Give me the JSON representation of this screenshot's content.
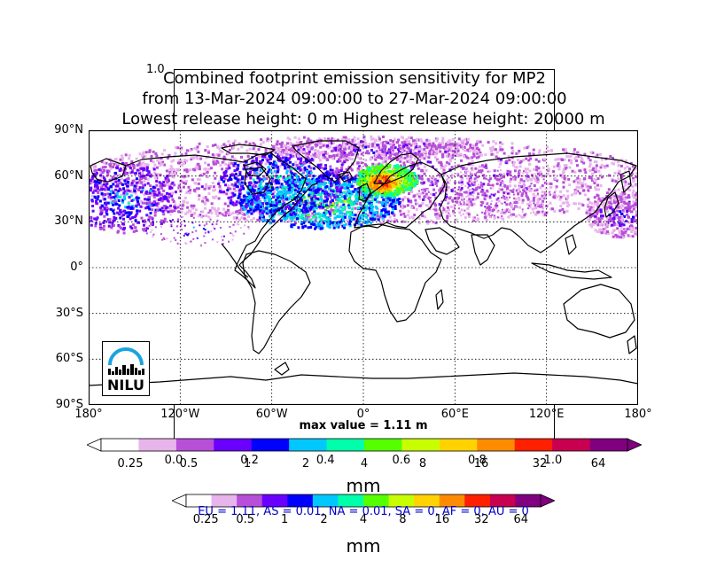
{
  "title": {
    "line1": "Combined footprint emission sensitivity for MP2",
    "line2": "from 13-Mar-2024 09:00:00 to 27-Mar-2024 09:00:00",
    "line3": "Lowest release height: 0 m       Highest release height: 20000 m"
  },
  "ghost_axis": {
    "top_label": "1.0",
    "ticks": [
      "0.0",
      "0.2",
      "0.4",
      "0.6",
      "0.8",
      "1.0"
    ]
  },
  "map": {
    "lat_labels": [
      "90°N",
      "60°N",
      "30°N",
      "0°",
      "30°S",
      "60°S",
      "90°S"
    ],
    "lon_labels": [
      "180°",
      "120°W",
      "60°W",
      "0°",
      "60°E",
      "120°E",
      "180°"
    ],
    "logo_text": "NILU",
    "max_value": "max value = 1.11 m"
  },
  "colorbar_main": {
    "ticks": [
      "0.25",
      "0.5",
      "1",
      "2",
      "4",
      "8",
      "16",
      "32",
      "64"
    ],
    "unit": "mm"
  },
  "colorbar_second": {
    "ticks": [
      "0.25",
      "0.5",
      "1",
      "2",
      "4",
      "8",
      "16",
      "32",
      "64"
    ],
    "unit": "mm",
    "region_summary": "EU = 1.11,  AS = 0.01,  NA = 0.01,  SA = 0,  AF = 0,  AU = 0"
  },
  "colors": {
    "scale": [
      "#ffffff",
      "#e8b4ec",
      "#b74fd8",
      "#6a00ff",
      "#0000ff",
      "#00c8ff",
      "#00ffaa",
      "#55ff00",
      "#c8ff00",
      "#ffd200",
      "#ff8c00",
      "#ff2000",
      "#c80050",
      "#800080"
    ],
    "region_text": "#0000cc"
  }
}
